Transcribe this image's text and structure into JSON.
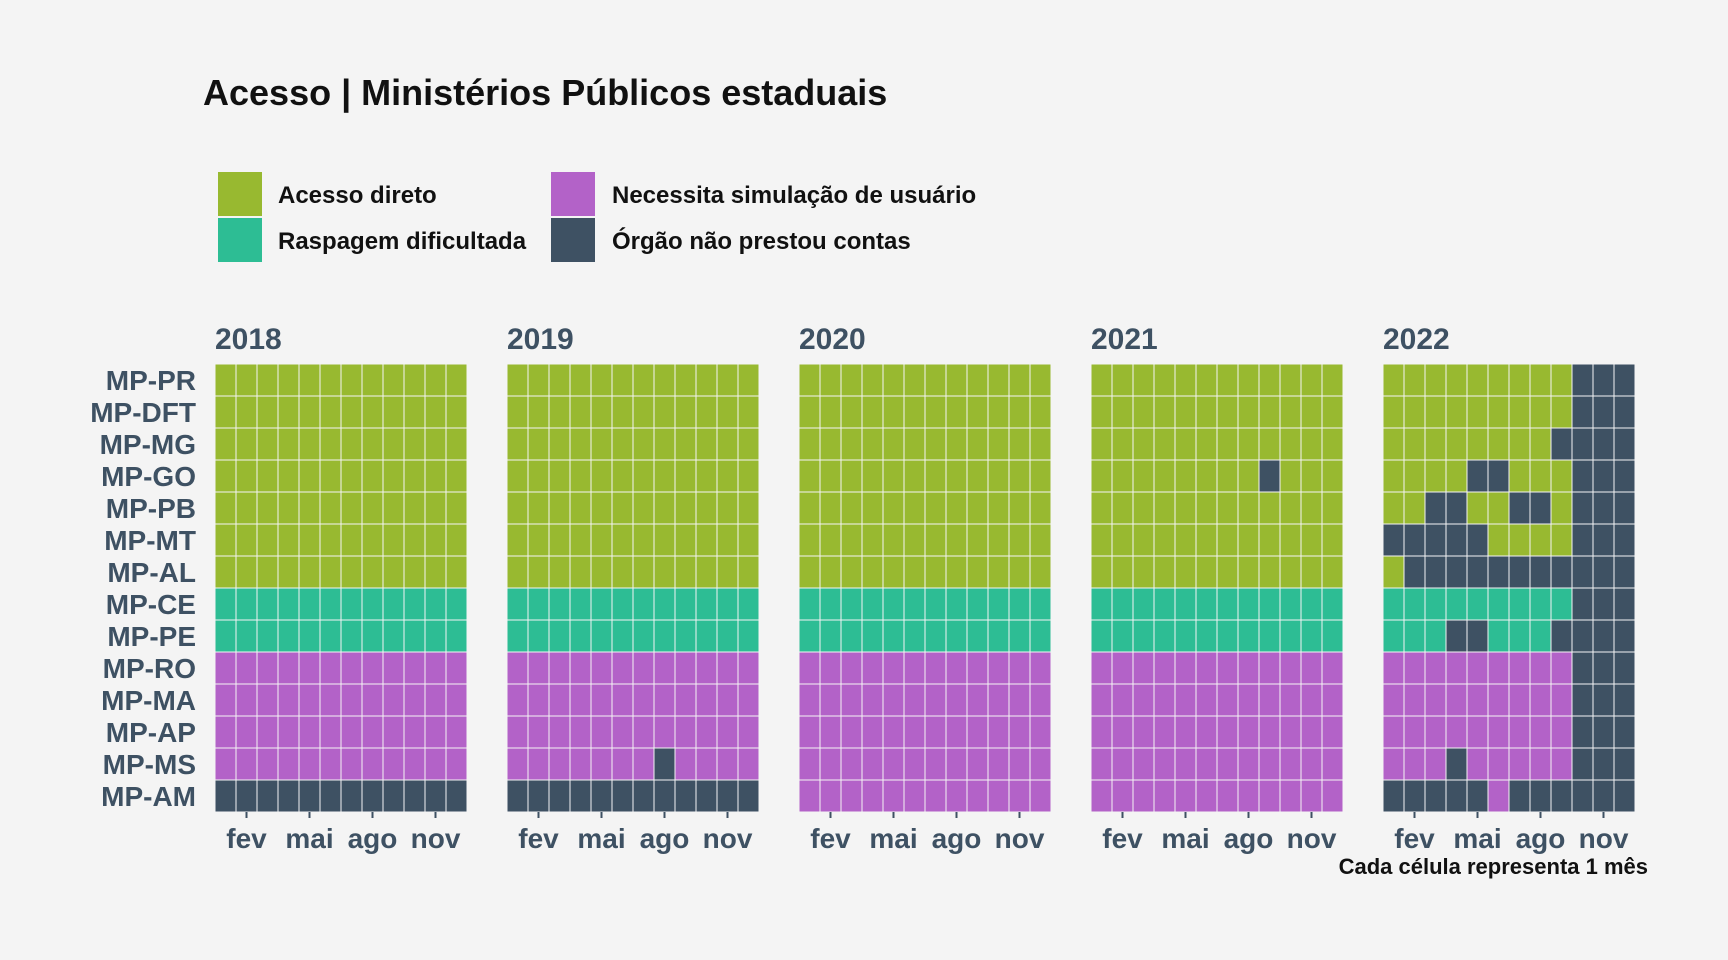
{
  "chart_data": {
    "type": "heatmap",
    "title": "Acesso | Ministérios Públicos estaduais",
    "caption": "Cada célula representa 1 mês",
    "legend_placement": "top-left",
    "categories": [
      {
        "code": "A",
        "label": "Acesso direto",
        "color": "#98b930"
      },
      {
        "code": "R",
        "label": "Raspagem dificultada",
        "color": "#2dbd94"
      },
      {
        "code": "N",
        "label": "Necessita simulação de usuário",
        "color": "#b362c8"
      },
      {
        "code": "X",
        "label": "Órgão não prestou contas",
        "color": "#3e5163"
      }
    ],
    "rows": [
      "MP-PR",
      "MP-DFT",
      "MP-MG",
      "MP-GO",
      "MP-PB",
      "MP-MT",
      "MP-AL",
      "MP-CE",
      "MP-PE",
      "MP-RO",
      "MP-MA",
      "MP-AP",
      "MP-MS",
      "MP-AM"
    ],
    "x_ticks": [
      {
        "month": 2,
        "label": "fev"
      },
      {
        "month": 5,
        "label": "mai"
      },
      {
        "month": 8,
        "label": "ago"
      },
      {
        "month": 11,
        "label": "nov"
      }
    ],
    "years": [
      {
        "year": "2018",
        "cells": [
          "AAAAAAAAAAAA",
          "AAAAAAAAAAAA",
          "AAAAAAAAAAAA",
          "AAAAAAAAAAAA",
          "AAAAAAAAAAAA",
          "AAAAAAAAAAAA",
          "AAAAAAAAAAAA",
          "RRRRRRRRRRRR",
          "RRRRRRRRRRRR",
          "NNNNNNNNNNNN",
          "NNNNNNNNNNNN",
          "NNNNNNNNNNNN",
          "NNNNNNNNNNNN",
          "XXXXXXXXXXXX"
        ]
      },
      {
        "year": "2019",
        "cells": [
          "AAAAAAAAAAAA",
          "AAAAAAAAAAAA",
          "AAAAAAAAAAAA",
          "AAAAAAAAAAAA",
          "AAAAAAAAAAAA",
          "AAAAAAAAAAAA",
          "AAAAAAAAAAAA",
          "RRRRRRRRRRRR",
          "RRRRRRRRRRRR",
          "NNNNNNNNNNNN",
          "NNNNNNNNNNNN",
          "NNNNNNNNNNNN",
          "NNNNNNNXNNNN",
          "XXXXXXXXXXXX"
        ]
      },
      {
        "year": "2020",
        "cells": [
          "AAAAAAAAAAAA",
          "AAAAAAAAAAAA",
          "AAAAAAAAAAAA",
          "AAAAAAAAAAAA",
          "AAAAAAAAAAAA",
          "AAAAAAAAAAAA",
          "AAAAAAAAAAAA",
          "RRRRRRRRRRRR",
          "RRRRRRRRRRRR",
          "NNNNNNNNNNNN",
          "NNNNNNNNNNNN",
          "NNNNNNNNNNNN",
          "NNNNNNNNNNNN",
          "NNNNNNNNNNNN"
        ]
      },
      {
        "year": "2021",
        "cells": [
          "AAAAAAAAAAAA",
          "AAAAAAAAAAAA",
          "AAAAAAAAAAAA",
          "AAAAAAAAXAAA",
          "AAAAAAAAAAAA",
          "AAAAAAAAAAAA",
          "AAAAAAAAAAAA",
          "RRRRRRRRRRRR",
          "RRRRRRRRRRRR",
          "NNNNNNNNNNNN",
          "NNNNNNNNNNNN",
          "NNNNNNNNNNNN",
          "NNNNNNNNNNNN",
          "NNNNNNNNNNNN"
        ]
      },
      {
        "year": "2022",
        "cells": [
          "AAAAAAAAAXXX",
          "AAAAAAAAAXXX",
          "AAAAAAAAXXXX",
          "AAAAXXAAAXXX",
          "AAXXAAXXAXXX",
          "XXXXXAAAAXXX",
          "AXXXXXXXXXXX",
          "RRRRRRRRRXXX",
          "RRRXXRRRXXXX",
          "NNNNNNNNNXXX",
          "NNNNNNNNNXXX",
          "NNNNNNNNNXXX",
          "NNNXNNNNNXXX",
          "XXXXXNXXXXXX"
        ]
      }
    ]
  }
}
